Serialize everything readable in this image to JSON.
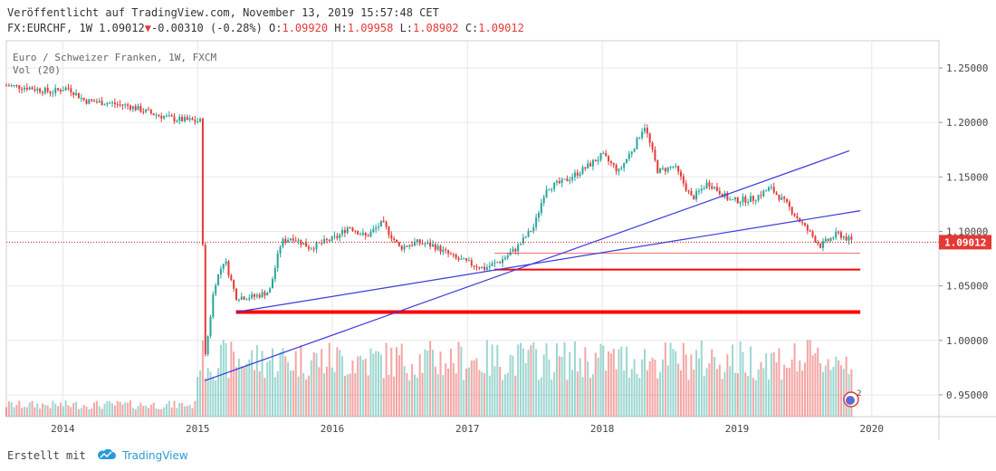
{
  "header": {
    "published": "Veröffentlicht auf TradingView.com, November 13, 2019 15:57:48 CET",
    "symbol": "FX:EURCHF, 1W",
    "last": "1.09012",
    "change": "-0.00310 (-0.28%)",
    "o_label": "O:",
    "o_value": "1.09920",
    "h_label": "H:",
    "h_value": "1.09958",
    "l_label": "L:",
    "l_value": "1.08902",
    "c_label": "C:",
    "c_value": "1.09012"
  },
  "legend": {
    "instrument": "Euro / Schweizer Franken, 1W, FXCM",
    "volume": "Vol (20)"
  },
  "footer": {
    "created_with": "Erstellt mit",
    "brand": "TradingView"
  },
  "colors": {
    "up": "#26a69a",
    "down": "#e53935",
    "trendline": "#3b3bdc",
    "support": "#ff0000",
    "grid": "#e8e8e8"
  },
  "chart_data": {
    "type": "candlestick",
    "title": "Euro / Schweizer Franken, 1W, FXCM",
    "last_price_label": "1.09012",
    "ylim": [
      0.93,
      1.275
    ],
    "y_ticks": [
      "1.25000",
      "1.20000",
      "1.15000",
      "1.10000",
      "1.05000",
      "1.00000",
      "0.95000"
    ],
    "x_ticks": [
      "2014",
      "2015",
      "2016",
      "2017",
      "2018",
      "2019",
      "2020"
    ],
    "xlim": [
      "2013-08-01",
      "2020-07-01"
    ],
    "close_series": [
      {
        "date": "2013-08-01",
        "close": 1.234
      },
      {
        "date": "2013-10-01",
        "close": 1.232
      },
      {
        "date": "2013-12-01",
        "close": 1.228
      },
      {
        "date": "2014-01-15",
        "close": 1.232
      },
      {
        "date": "2014-03-01",
        "close": 1.22
      },
      {
        "date": "2014-05-01",
        "close": 1.218
      },
      {
        "date": "2014-07-01",
        "close": 1.215
      },
      {
        "date": "2014-09-01",
        "close": 1.208
      },
      {
        "date": "2014-11-01",
        "close": 1.203
      },
      {
        "date": "2015-01-10",
        "close": 1.201
      },
      {
        "date": "2015-01-20",
        "close": 0.98
      },
      {
        "date": "2015-02-15",
        "close": 1.05
      },
      {
        "date": "2015-03-15",
        "close": 1.075
      },
      {
        "date": "2015-04-15",
        "close": 1.04
      },
      {
        "date": "2015-06-01",
        "close": 1.04
      },
      {
        "date": "2015-07-15",
        "close": 1.045
      },
      {
        "date": "2015-08-15",
        "close": 1.09
      },
      {
        "date": "2015-09-15",
        "close": 1.095
      },
      {
        "date": "2015-11-01",
        "close": 1.085
      },
      {
        "date": "2016-01-15",
        "close": 1.095
      },
      {
        "date": "2016-02-15",
        "close": 1.105
      },
      {
        "date": "2016-04-01",
        "close": 1.095
      },
      {
        "date": "2016-05-15",
        "close": 1.108
      },
      {
        "date": "2016-07-01",
        "close": 1.085
      },
      {
        "date": "2016-08-15",
        "close": 1.09
      },
      {
        "date": "2016-10-01",
        "close": 1.087
      },
      {
        "date": "2016-12-01",
        "close": 1.075
      },
      {
        "date": "2017-02-15",
        "close": 1.066
      },
      {
        "date": "2017-04-01",
        "close": 1.073
      },
      {
        "date": "2017-05-15",
        "close": 1.085
      },
      {
        "date": "2017-07-01",
        "close": 1.105
      },
      {
        "date": "2017-08-01",
        "close": 1.14
      },
      {
        "date": "2017-09-15",
        "close": 1.145
      },
      {
        "date": "2017-11-15",
        "close": 1.158
      },
      {
        "date": "2018-01-01",
        "close": 1.17
      },
      {
        "date": "2018-02-15",
        "close": 1.155
      },
      {
        "date": "2018-04-01",
        "close": 1.18
      },
      {
        "date": "2018-04-25",
        "close": 1.198
      },
      {
        "date": "2018-06-01",
        "close": 1.155
      },
      {
        "date": "2018-07-15",
        "close": 1.16
      },
      {
        "date": "2018-09-01",
        "close": 1.13
      },
      {
        "date": "2018-10-15",
        "close": 1.145
      },
      {
        "date": "2018-12-15",
        "close": 1.128
      },
      {
        "date": "2019-02-15",
        "close": 1.13
      },
      {
        "date": "2019-04-01",
        "close": 1.14
      },
      {
        "date": "2019-05-15",
        "close": 1.125
      },
      {
        "date": "2019-07-01",
        "close": 1.105
      },
      {
        "date": "2019-08-15",
        "close": 1.087
      },
      {
        "date": "2019-10-01",
        "close": 1.098
      },
      {
        "date": "2019-11-13",
        "close": 1.09012
      }
    ],
    "trendlines": [
      {
        "from": {
          "date": "2015-01-20",
          "value": 0.963
        },
        "to": {
          "date": "2019-11-01",
          "value": 1.174
        }
      },
      {
        "from": {
          "date": "2015-04-15",
          "value": 1.026
        },
        "to": {
          "date": "2019-12-01",
          "value": 1.119
        }
      }
    ],
    "support_lines": [
      {
        "from_date": "2015-04-15",
        "to_date": "2019-12-01",
        "value": 1.026,
        "weight": "thick"
      },
      {
        "from_date": "2017-03-15",
        "to_date": "2019-12-01",
        "value": 1.065,
        "weight": "medium"
      },
      {
        "from_date": "2017-03-15",
        "to_date": "2019-12-01",
        "value": 1.08,
        "weight": "thin"
      }
    ]
  }
}
